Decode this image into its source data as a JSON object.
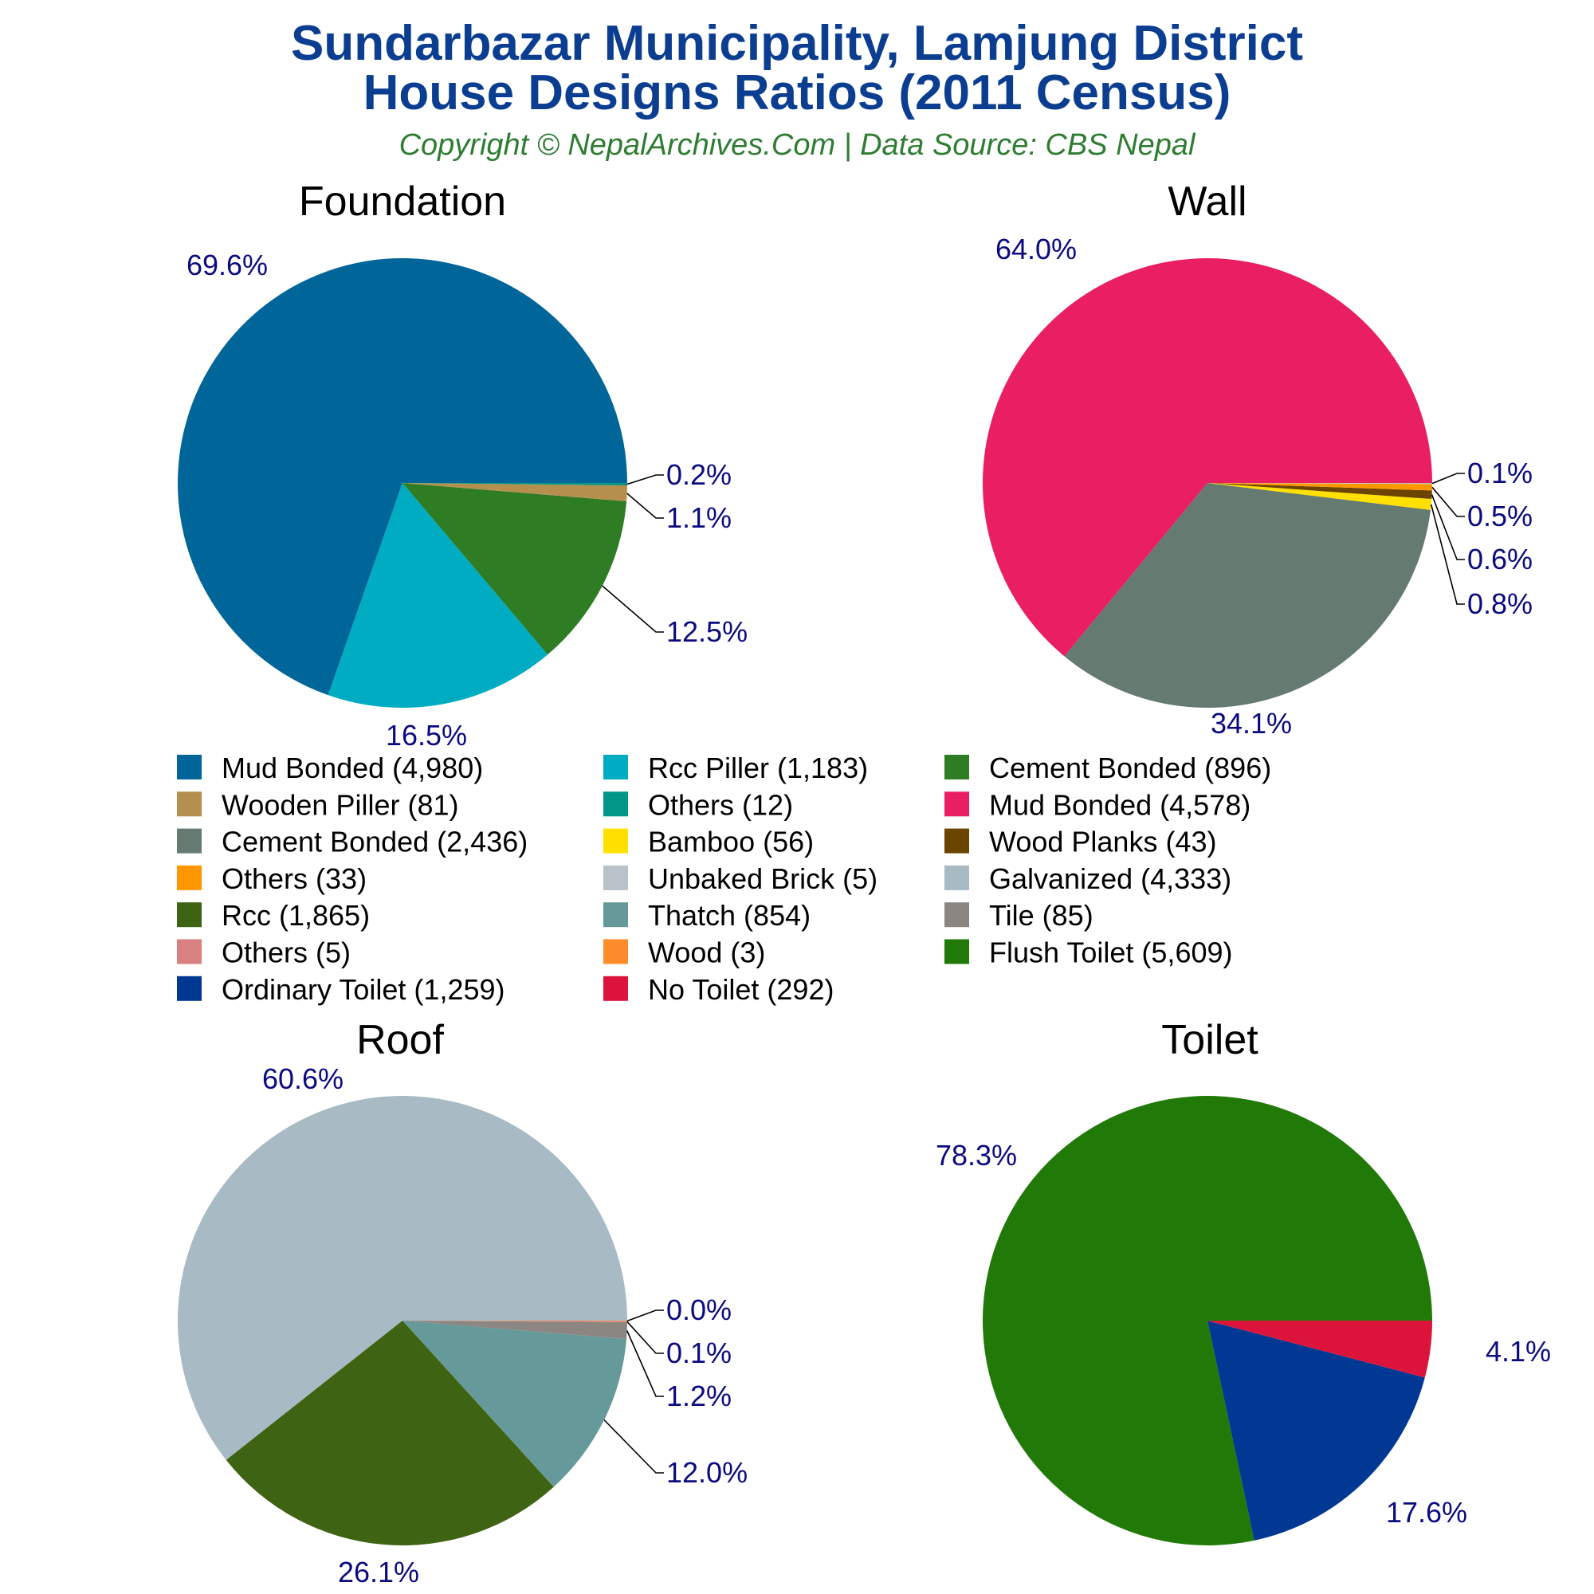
{
  "title": {
    "line1": "Sundarbazar Municipality, Lamjung District",
    "line2": "House Designs Ratios (2011 Census)",
    "subtitle": "Copyright © NepalArchives.Com | Data Source: CBS Nepal"
  },
  "chart_data": [
    {
      "type": "pie",
      "title": "Foundation",
      "slices": [
        {
          "label": "Mud Bonded (4,980)",
          "value": 4980,
          "percent_label": "69.6%",
          "color": "#006699"
        },
        {
          "label": "Rcc Piller (1,183)",
          "value": 1183,
          "percent_label": "16.5%",
          "color": "#00acc1"
        },
        {
          "label": "Cement Bonded (896)",
          "value": 896,
          "percent_label": "12.5%",
          "color": "#2e7d24"
        },
        {
          "label": "Wooden Piller (81)",
          "value": 81,
          "percent_label": "1.1%",
          "color": "#b58f4e"
        },
        {
          "label": "Others (12)",
          "value": 12,
          "percent_label": "0.2%",
          "color": "#009688"
        }
      ]
    },
    {
      "type": "pie",
      "title": "Wall",
      "slices": [
        {
          "label": "Mud Bonded (4,578)",
          "value": 4578,
          "percent_label": "64.0%",
          "color": "#e91e63"
        },
        {
          "label": "Cement Bonded (2,436)",
          "value": 2436,
          "percent_label": "34.1%",
          "color": "#657a70"
        },
        {
          "label": "Bamboo (56)",
          "value": 56,
          "percent_label": "0.8%",
          "color": "#ffe000"
        },
        {
          "label": "Wood Planks (43)",
          "value": 43,
          "percent_label": "0.6%",
          "color": "#6b4400"
        },
        {
          "label": "Others (33)",
          "value": 33,
          "percent_label": "0.5%",
          "color": "#ff9800"
        },
        {
          "label": "Unbaked Brick (5)",
          "value": 5,
          "percent_label": "0.1%",
          "color": "#b8c2c8"
        }
      ]
    },
    {
      "type": "pie",
      "title": "Roof",
      "slices": [
        {
          "label": "Galvanized (4,333)",
          "value": 4333,
          "percent_label": "60.6%",
          "color": "#a8bac3"
        },
        {
          "label": "Rcc (1,865)",
          "value": 1865,
          "percent_label": "26.1%",
          "color": "#3e6312"
        },
        {
          "label": "Thatch (854)",
          "value": 854,
          "percent_label": "12.0%",
          "color": "#669999"
        },
        {
          "label": "Tile (85)",
          "value": 85,
          "percent_label": "1.2%",
          "color": "#8c8682"
        },
        {
          "label": "Others (5)",
          "value": 5,
          "percent_label": "0.1%",
          "color": "#d98080"
        },
        {
          "label": "Wood (3)",
          "value": 3,
          "percent_label": "0.0%",
          "color": "#ff8c2a"
        }
      ]
    },
    {
      "type": "pie",
      "title": "Toilet",
      "slices": [
        {
          "label": "Flush Toilet (5,609)",
          "value": 5609,
          "percent_label": "78.3%",
          "color": "#217a08"
        },
        {
          "label": "Ordinary Toilet (1,259)",
          "value": 1259,
          "percent_label": "17.6%",
          "color": "#003893"
        },
        {
          "label": "No Toilet (292)",
          "value": 292,
          "percent_label": "4.1%",
          "color": "#dc143c"
        }
      ]
    }
  ],
  "legend": [
    {
      "label": "Mud Bonded (4,980)",
      "color": "#006699"
    },
    {
      "label": "Rcc Piller (1,183)",
      "color": "#00acc1"
    },
    {
      "label": "Cement Bonded (896)",
      "color": "#2e7d24"
    },
    {
      "label": "Wooden Piller (81)",
      "color": "#b58f4e"
    },
    {
      "label": "Others (12)",
      "color": "#009688"
    },
    {
      "label": "Mud Bonded (4,578)",
      "color": "#e91e63"
    },
    {
      "label": "Cement Bonded (2,436)",
      "color": "#657a70"
    },
    {
      "label": "Bamboo (56)",
      "color": "#ffe000"
    },
    {
      "label": "Wood Planks (43)",
      "color": "#6b4400"
    },
    {
      "label": "Others (33)",
      "color": "#ff9800"
    },
    {
      "label": "Unbaked Brick (5)",
      "color": "#b8c2c8"
    },
    {
      "label": "Galvanized (4,333)",
      "color": "#a8bac3"
    },
    {
      "label": "Rcc (1,865)",
      "color": "#3e6312"
    },
    {
      "label": "Thatch (854)",
      "color": "#669999"
    },
    {
      "label": "Tile (85)",
      "color": "#8c8682"
    },
    {
      "label": "Others (5)",
      "color": "#d98080"
    },
    {
      "label": "Wood (3)",
      "color": "#ff8c2a"
    },
    {
      "label": "Flush Toilet (5,609)",
      "color": "#217a08"
    },
    {
      "label": "Ordinary Toilet (1,259)",
      "color": "#003893"
    },
    {
      "label": "No Toilet (292)",
      "color": "#dc143c"
    }
  ]
}
